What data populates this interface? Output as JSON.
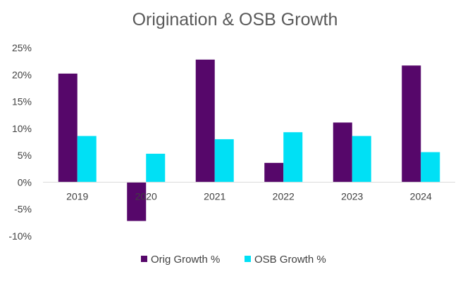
{
  "chart_data": {
    "type": "bar",
    "title": "Origination & OSB Growth",
    "categories": [
      "2019",
      "2020",
      "2021",
      "2022",
      "2023",
      "2024"
    ],
    "series": [
      {
        "name": "Orig Growth %",
        "color": "#56076A",
        "values": [
          20.2,
          -7.2,
          22.8,
          3.6,
          11.1,
          21.7
        ]
      },
      {
        "name": "OSB Growth %",
        "color": "#00E0F5",
        "values": [
          8.6,
          5.3,
          8.0,
          9.3,
          8.6,
          5.6
        ]
      }
    ],
    "y_ticks": [
      "25%",
      "20%",
      "15%",
      "10%",
      "5%",
      "0%",
      "-5%",
      "-10%"
    ],
    "y_tick_values": [
      25,
      20,
      15,
      10,
      5,
      0,
      -5,
      -10
    ],
    "ylim": [
      -10,
      25
    ],
    "grid": false,
    "legend_position": "bottom"
  }
}
